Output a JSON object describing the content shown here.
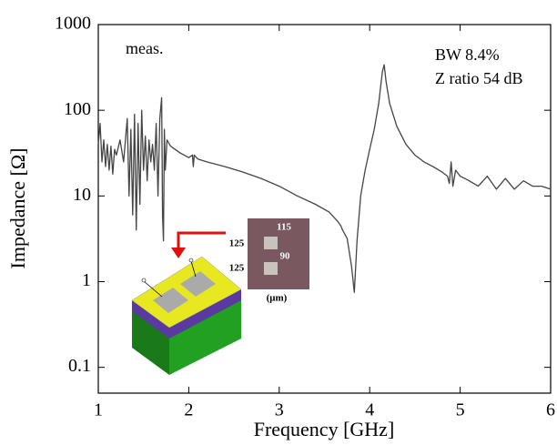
{
  "chart_data": {
    "type": "line",
    "xlabel": "Frequency [GHz]",
    "ylabel": "Impedance [Ω]",
    "annotations": [
      "meas.",
      "BW 8.4%",
      "Z ratio 54 dB"
    ],
    "inset_labels": [
      "115",
      "90",
      "125",
      "125",
      "(μm)"
    ],
    "x": [
      1.0,
      1.02,
      1.04,
      1.06,
      1.08,
      1.1,
      1.12,
      1.14,
      1.16,
      1.18,
      1.2,
      1.24,
      1.28,
      1.32,
      1.34,
      1.36,
      1.38,
      1.4,
      1.42,
      1.44,
      1.46,
      1.48,
      1.5,
      1.52,
      1.54,
      1.56,
      1.58,
      1.6,
      1.62,
      1.64,
      1.66,
      1.68,
      1.7,
      1.71,
      1.72,
      1.73,
      1.74,
      1.76,
      1.8,
      1.9,
      2.0,
      2.04,
      2.05,
      2.06,
      2.1,
      2.2,
      2.4,
      2.6,
      2.8,
      3.0,
      3.2,
      3.4,
      3.55,
      3.65,
      3.68,
      3.7,
      3.75,
      3.8,
      3.83,
      3.86,
      3.9,
      3.95,
      4.0,
      4.05,
      4.1,
      4.14,
      4.16,
      4.18,
      4.22,
      4.3,
      4.4,
      4.5,
      4.6,
      4.7,
      4.8,
      4.86,
      4.88,
      4.9,
      4.92,
      4.95,
      5.0,
      5.05,
      5.1,
      5.2,
      5.3,
      5.4,
      5.5,
      5.6,
      5.7,
      5.8,
      5.9,
      6.0
    ],
    "series": [
      {
        "color": "#444444",
        "values": [
          40,
          70,
          25,
          45,
          22,
          40,
          20,
          38,
          18,
          35,
          30,
          45,
          25,
          80,
          10,
          60,
          6,
          90,
          4,
          70,
          8,
          100,
          20,
          50,
          15,
          45,
          25,
          40,
          20,
          70,
          10,
          80,
          140,
          6,
          3,
          60,
          20,
          45,
          38,
          32,
          28,
          30,
          22,
          30,
          27,
          25,
          22,
          19,
          16,
          13,
          10,
          8,
          6.5,
          5,
          4.5,
          4,
          3.2,
          1.5,
          0.75,
          3,
          10,
          20,
          35,
          60,
          120,
          280,
          340,
          220,
          120,
          65,
          40,
          30,
          25,
          22,
          19,
          17,
          14,
          25,
          13,
          20,
          17,
          16,
          15,
          13,
          17,
          12,
          16,
          12,
          15,
          13,
          13,
          12
        ]
      }
    ],
    "xlim": [
      1,
      6
    ],
    "xticks": [
      1,
      2,
      3,
      4,
      5,
      6
    ],
    "ylim": [
      0.05,
      1000
    ],
    "yticks": [
      0.1,
      1,
      10,
      100,
      1000
    ],
    "ylog": true
  }
}
